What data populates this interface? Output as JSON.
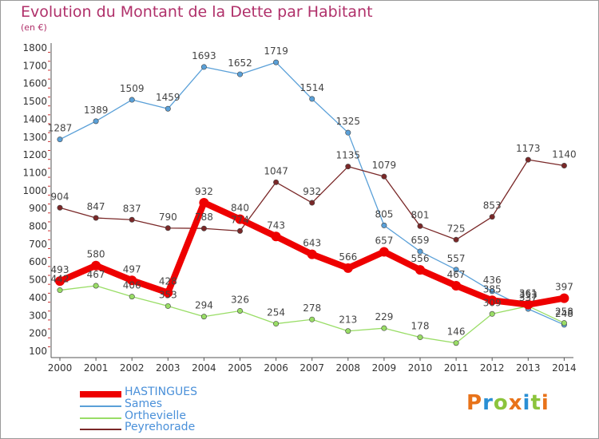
{
  "header": {
    "title": "Evolution du Montant de la Dette par Habitant",
    "unit": "(en €)"
  },
  "logo": {
    "text": "Proxiti",
    "colors": [
      "#e8731a",
      "#2a8fd4",
      "#8cc43c",
      "#e8731a",
      "#2a8fd4",
      "#8cc43c",
      "#e8731a"
    ]
  },
  "chart_data": {
    "type": "line",
    "title": "Evolution du Montant de la Dette par Habitant",
    "ylabel": "(en €)",
    "ylim": [
      100,
      1800
    ],
    "y_ticks": [
      "1800",
      "1700",
      "1600",
      "1500",
      "1400",
      "1300",
      "1200",
      "1100",
      "1000",
      "900",
      "800",
      "700",
      "600",
      "500",
      "400",
      "300",
      "200",
      "100"
    ],
    "categories": [
      "2000",
      "2001",
      "2002",
      "2003",
      "2004",
      "2005",
      "2006",
      "2007",
      "2008",
      "2009",
      "2010",
      "2011",
      "2012",
      "2013",
      "2014"
    ],
    "grid": false,
    "legend_position": "bottom-left",
    "series": [
      {
        "name": "HASTINGUES",
        "color": "#ee0000",
        "values": [
          493,
          580,
          497,
          428,
          932,
          840,
          743,
          643,
          566,
          657,
          556,
          467,
          385,
          361,
          397
        ],
        "labels": [
          "493",
          "580",
          "497",
          "428",
          "932",
          "840",
          "743",
          "643",
          "566",
          "657",
          "556",
          "467",
          "385",
          "361",
          "397"
        ]
      },
      {
        "name": "Sames",
        "color": "#5aa0d8",
        "values": [
          1287,
          1389,
          1509,
          1459,
          1693,
          1652,
          1719,
          1514,
          1325,
          805,
          659,
          557,
          436,
          337,
          248
        ],
        "labels": [
          "1287",
          "1389",
          "1509",
          "1459",
          "1693",
          "1652",
          "1719",
          "1514",
          "1325",
          "805",
          "659",
          "557",
          "436",
          "337",
          "248"
        ]
      },
      {
        "name": "Orthevielle",
        "color": "#99dd66",
        "values": [
          442,
          467,
          406,
          353,
          294,
          326,
          254,
          278,
          213,
          229,
          178,
          146,
          309,
          353,
          258
        ],
        "labels": [
          "442",
          "467",
          "406",
          "353",
          "294",
          "326",
          "254",
          "278",
          "213",
          "229",
          "178",
          "146",
          "309",
          "353",
          "258"
        ]
      },
      {
        "name": "Peyrehorade",
        "color": "#7a2828",
        "values": [
          904,
          847,
          837,
          790,
          788,
          774,
          1047,
          932,
          1135,
          1079,
          801,
          725,
          853,
          1173,
          1140
        ],
        "labels": [
          "904",
          "847",
          "837",
          "790",
          "788",
          "774",
          "1047",
          "932",
          "1135",
          "1079",
          "801",
          "725",
          "853",
          "1173",
          "1140"
        ]
      }
    ]
  }
}
